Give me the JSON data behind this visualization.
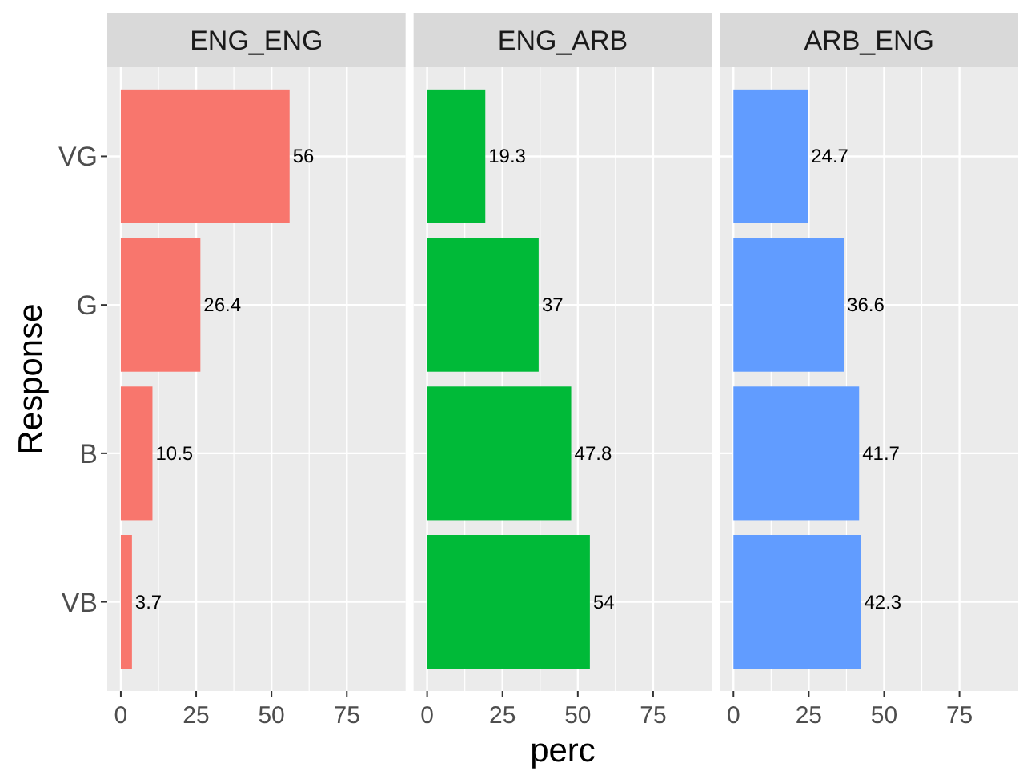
{
  "chart_data": [
    {
      "type": "bar",
      "orientation": "horizontal",
      "title": "ENG_ENG",
      "ylabel": "Response",
      "categories": [
        "VG",
        "G",
        "B",
        "VB"
      ],
      "values": [
        56,
        26.4,
        10.5,
        3.7
      ],
      "color": "#f8766d",
      "xlim": [
        -4.5,
        94.5
      ],
      "xticks": [
        0,
        25,
        50,
        75
      ],
      "grid": true,
      "data_labels": true
    },
    {
      "type": "bar",
      "orientation": "horizontal",
      "title": "ENG_ARB",
      "xlabel": "perc",
      "categories": [
        null,
        null,
        null,
        null
      ],
      "values": [
        19.3,
        37,
        47.8,
        54
      ],
      "color": "#00ba38",
      "xlim": [
        -4.5,
        94.5
      ],
      "xticks": [
        0,
        25,
        50,
        75
      ],
      "grid": true,
      "data_labels": true,
      "tick_labels": "x"
    },
    {
      "type": "bar",
      "orientation": "horizontal",
      "title": "ARB_ENG",
      "categories": [
        null,
        null,
        null,
        null
      ],
      "values": [
        24.7,
        36.6,
        41.7,
        42.3
      ],
      "color": "#619cff",
      "xlim": [
        -4.5,
        94.5
      ],
      "xticks": [
        0,
        25,
        50,
        75
      ],
      "grid": true,
      "data_labels": true,
      "tick_labels": "x"
    }
  ]
}
